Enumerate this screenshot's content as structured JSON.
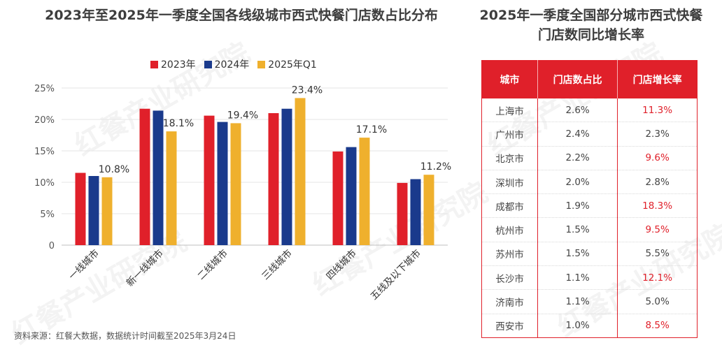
{
  "left_title": "2023年至2025年一季度全国各线级城市西式快餐门店数占比分布",
  "right_title": "2025年一季度全国部分城市西式快餐门店数同比增长率",
  "source": "资料来源：红餐大数据，数据统计时间截至2025年3月24日",
  "watermark": "红餐产业研究院",
  "colors": {
    "red": "#e0202a",
    "blue": "#1a3a8c",
    "gold": "#efb02d"
  },
  "chart_data": {
    "type": "bar",
    "title": "2023年至2025年一季度全国各线级城市西式快餐门店数占比分布",
    "categories": [
      "一线城市",
      "新一线城市",
      "二线城市",
      "三线城市",
      "四线城市",
      "五线及以下城市"
    ],
    "series": [
      {
        "name": "2023年",
        "color": "#e0202a",
        "values": [
          11.5,
          21.7,
          20.6,
          21.0,
          14.9,
          9.9
        ]
      },
      {
        "name": "2024年",
        "color": "#1a3a8c",
        "values": [
          11.0,
          21.4,
          19.6,
          21.7,
          15.6,
          10.5
        ]
      },
      {
        "name": "2025年Q1",
        "color": "#efb02d",
        "values": [
          10.8,
          18.1,
          19.4,
          23.4,
          17.1,
          11.2
        ]
      }
    ],
    "data_labels": [
      "10.8%",
      "18.1%",
      "19.4%",
      "23.4%",
      "17.1%",
      "11.2%"
    ],
    "yticks": [
      0,
      5,
      10,
      15,
      20,
      25
    ],
    "ytick_labels": [
      "0",
      "5%",
      "10%",
      "15%",
      "20%",
      "25%"
    ],
    "ylim": [
      0,
      25
    ],
    "xlabel": "",
    "ylabel": "",
    "grid": true,
    "legend": "top"
  },
  "table": {
    "headers": [
      "城市",
      "门店数占比",
      "门店增长率"
    ],
    "rows": [
      {
        "city": "上海市",
        "share": "2.6%",
        "growth": "11.3%",
        "highlight": true
      },
      {
        "city": "广州市",
        "share": "2.4%",
        "growth": "2.3%",
        "highlight": false
      },
      {
        "city": "北京市",
        "share": "2.2%",
        "growth": "9.6%",
        "highlight": true
      },
      {
        "city": "深圳市",
        "share": "2.0%",
        "growth": "2.8%",
        "highlight": false
      },
      {
        "city": "成都市",
        "share": "1.9%",
        "growth": "18.3%",
        "highlight": true
      },
      {
        "city": "杭州市",
        "share": "1.5%",
        "growth": "9.5%",
        "highlight": true
      },
      {
        "city": "苏州市",
        "share": "1.5%",
        "growth": "5.5%",
        "highlight": false
      },
      {
        "city": "长沙市",
        "share": "1.1%",
        "growth": "12.1%",
        "highlight": true
      },
      {
        "city": "济南市",
        "share": "1.1%",
        "growth": "5.0%",
        "highlight": false
      },
      {
        "city": "西安市",
        "share": "1.0%",
        "growth": "8.5%",
        "highlight": true
      }
    ]
  }
}
